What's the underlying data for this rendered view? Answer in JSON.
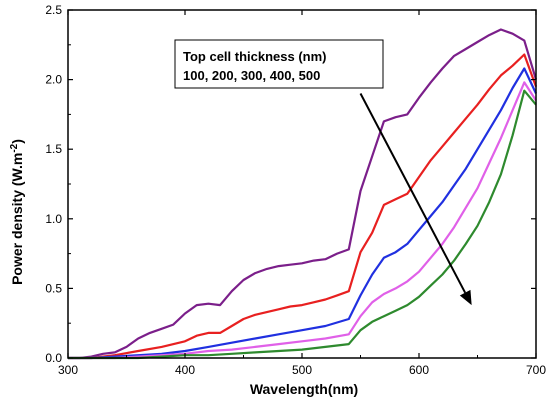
{
  "chart_data": {
    "type": "line",
    "xlabel": "Wavelength(nm)",
    "ylabel": "Power density (W.m",
    "ylabel_superscript": "-2",
    "ylabel_close": ")",
    "xlim": [
      300,
      700
    ],
    "ylim": [
      0,
      2.5
    ],
    "xticks": [
      300,
      400,
      500,
      600,
      700
    ],
    "yticks": [
      0.0,
      0.5,
      1.0,
      1.5,
      2.0,
      2.5
    ],
    "xtick_labels": [
      "300",
      "400",
      "500",
      "600",
      "700"
    ],
    "ytick_labels": [
      "0.0",
      "0.5",
      "1.0",
      "1.5",
      "2.0",
      "2.5"
    ],
    "grid": false,
    "annotation": {
      "title": "Top cell thickness (nm)",
      "values": "100, 200, 300, 400, 500",
      "arrow_from": [
        550,
        1.9
      ],
      "arrow_to": [
        645,
        0.38
      ]
    },
    "series": [
      {
        "color": "#7B1F8A",
        "x": [
          300,
          310,
          320,
          330,
          340,
          350,
          360,
          370,
          380,
          390,
          400,
          410,
          420,
          430,
          440,
          450,
          460,
          470,
          480,
          490,
          500,
          510,
          520,
          530,
          540,
          550,
          560,
          570,
          580,
          590,
          600,
          610,
          620,
          630,
          640,
          650,
          660,
          670,
          680,
          690,
          700
        ],
        "y": [
          0.0,
          0.0,
          0.01,
          0.03,
          0.04,
          0.08,
          0.14,
          0.18,
          0.21,
          0.24,
          0.32,
          0.38,
          0.39,
          0.38,
          0.48,
          0.56,
          0.61,
          0.64,
          0.66,
          0.67,
          0.68,
          0.7,
          0.71,
          0.75,
          0.78,
          1.2,
          1.45,
          1.7,
          1.73,
          1.75,
          1.87,
          1.98,
          2.08,
          2.17,
          2.22,
          2.27,
          2.32,
          2.36,
          2.33,
          2.28,
          2.0
        ]
      },
      {
        "color": "#E82020",
        "x": [
          300,
          320,
          340,
          360,
          380,
          400,
          410,
          420,
          430,
          440,
          450,
          460,
          470,
          480,
          490,
          500,
          510,
          520,
          530,
          540,
          550,
          560,
          570,
          580,
          590,
          600,
          610,
          620,
          630,
          640,
          650,
          660,
          670,
          680,
          690,
          700
        ],
        "y": [
          0.0,
          0.0,
          0.02,
          0.05,
          0.08,
          0.12,
          0.16,
          0.18,
          0.18,
          0.23,
          0.28,
          0.31,
          0.33,
          0.35,
          0.37,
          0.38,
          0.4,
          0.42,
          0.45,
          0.48,
          0.76,
          0.9,
          1.1,
          1.14,
          1.18,
          1.3,
          1.42,
          1.52,
          1.62,
          1.72,
          1.82,
          1.93,
          2.03,
          2.1,
          2.18,
          1.95
        ]
      },
      {
        "color": "#2030E0",
        "x": [
          300,
          320,
          340,
          360,
          380,
          400,
          420,
          440,
          460,
          480,
          500,
          520,
          540,
          550,
          560,
          570,
          580,
          590,
          600,
          610,
          620,
          630,
          640,
          650,
          660,
          670,
          680,
          690,
          700
        ],
        "y": [
          0.0,
          0.0,
          0.01,
          0.02,
          0.03,
          0.05,
          0.08,
          0.11,
          0.14,
          0.17,
          0.2,
          0.23,
          0.28,
          0.45,
          0.6,
          0.72,
          0.76,
          0.82,
          0.92,
          1.02,
          1.12,
          1.24,
          1.36,
          1.5,
          1.64,
          1.78,
          1.94,
          2.08,
          1.9
        ]
      },
      {
        "color": "#E060E8",
        "x": [
          300,
          320,
          340,
          360,
          380,
          400,
          420,
          440,
          460,
          480,
          500,
          520,
          540,
          550,
          560,
          570,
          580,
          590,
          600,
          610,
          620,
          630,
          640,
          650,
          660,
          670,
          680,
          690,
          700
        ],
        "y": [
          0.0,
          0.0,
          0.0,
          0.01,
          0.02,
          0.03,
          0.05,
          0.06,
          0.08,
          0.1,
          0.12,
          0.14,
          0.17,
          0.3,
          0.4,
          0.46,
          0.5,
          0.55,
          0.62,
          0.72,
          0.82,
          0.94,
          1.08,
          1.22,
          1.4,
          1.58,
          1.78,
          1.98,
          1.85
        ]
      },
      {
        "color": "#2E8A2E",
        "x": [
          300,
          320,
          340,
          360,
          380,
          400,
          420,
          440,
          460,
          480,
          500,
          520,
          540,
          550,
          560,
          570,
          580,
          590,
          600,
          610,
          620,
          630,
          640,
          650,
          660,
          670,
          680,
          690,
          700
        ],
        "y": [
          0.0,
          0.0,
          0.0,
          0.0,
          0.01,
          0.02,
          0.02,
          0.03,
          0.04,
          0.05,
          0.06,
          0.08,
          0.1,
          0.2,
          0.26,
          0.3,
          0.34,
          0.38,
          0.44,
          0.52,
          0.6,
          0.7,
          0.82,
          0.95,
          1.12,
          1.32,
          1.6,
          1.92,
          1.82
        ]
      }
    ]
  }
}
